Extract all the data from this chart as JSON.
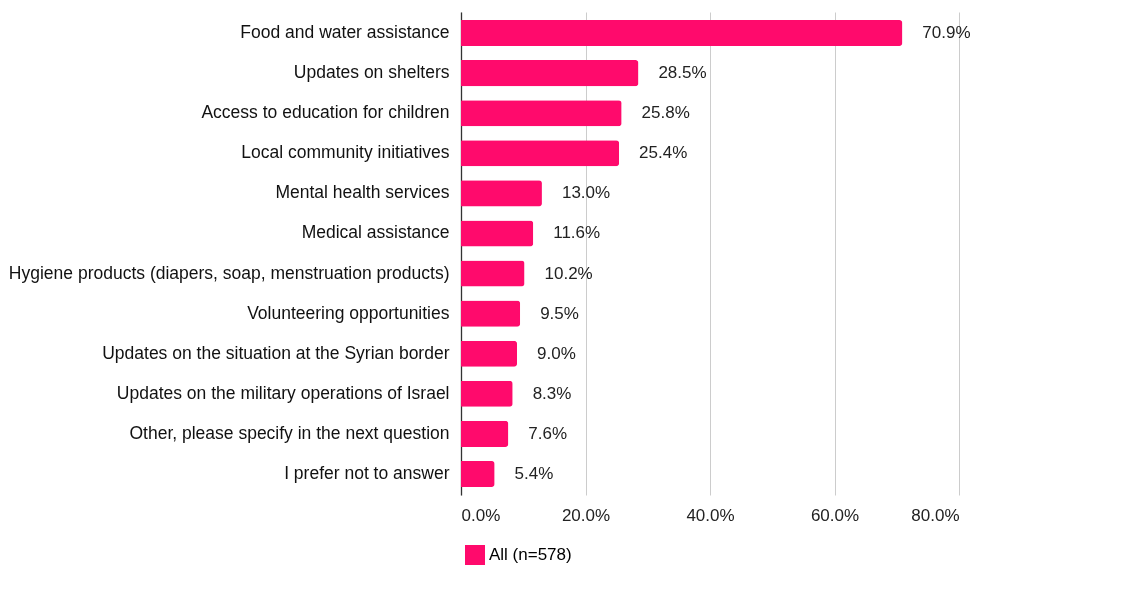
{
  "chart_data": {
    "type": "bar",
    "orientation": "horizontal",
    "categories": [
      "Food and water assistance",
      "Updates on shelters",
      "Access to education for children",
      "Local community initiatives",
      "Mental health services",
      "Medical assistance",
      "Hygiene products (diapers, soap, menstruation products)",
      "Volunteering opportunities",
      "Updates on the situation at the Syrian border",
      "Updates on the military operations of Israel",
      "Other, please specify in the next question",
      "I prefer not to answer"
    ],
    "series": [
      {
        "name": "All (n=578)",
        "color": "#ff0a6c",
        "values": [
          70.9,
          28.5,
          25.8,
          25.4,
          13.0,
          11.6,
          10.2,
          9.5,
          9.0,
          8.3,
          7.6,
          5.4
        ],
        "value_labels": [
          "70.9%",
          "28.5%",
          "25.8%",
          "25.4%",
          "13.0%",
          "11.6%",
          "10.2%",
          "9.5%",
          "9.0%",
          "8.3%",
          "7.6%",
          "5.4%"
        ]
      }
    ],
    "xlim": [
      0,
      80
    ],
    "xticks": [
      {
        "value": 0,
        "label": "0.0%"
      },
      {
        "value": 20,
        "label": "20.0%"
      },
      {
        "value": 40,
        "label": "40.0%"
      },
      {
        "value": 60,
        "label": "60.0%"
      },
      {
        "value": 80,
        "label": "80.0%"
      }
    ],
    "grid": "x",
    "legend": "bottom"
  }
}
